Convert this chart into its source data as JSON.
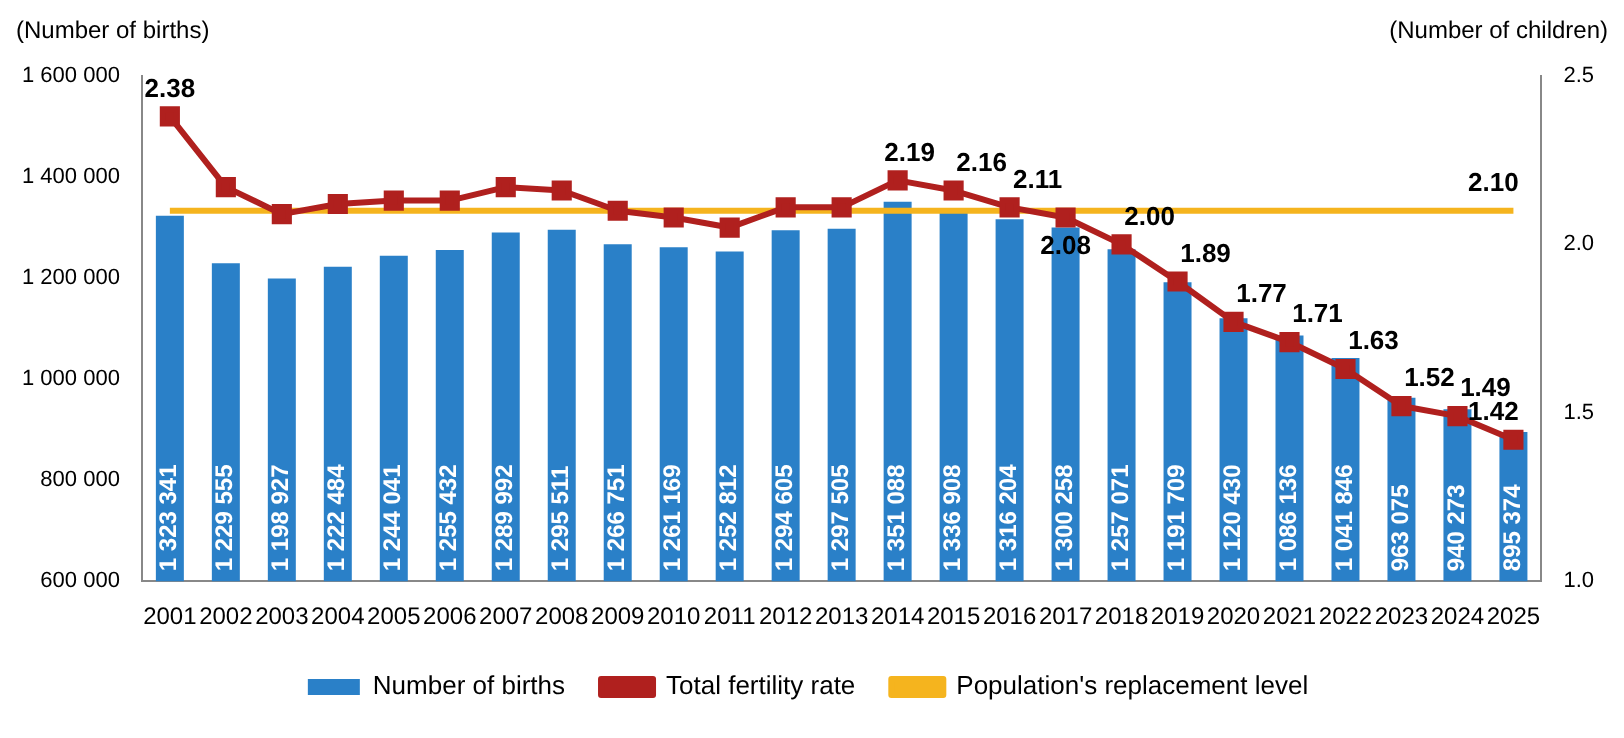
{
  "chart_data": {
    "type": "bar",
    "ylabel": "(Number of births)",
    "y2label": "(Number of children)",
    "categories": [
      "2001",
      "2002",
      "2003",
      "2004",
      "2005",
      "2006",
      "2007",
      "2008",
      "2009",
      "2010",
      "2011",
      "2012",
      "2013",
      "2014",
      "2015",
      "2016",
      "2017",
      "2018",
      "2019",
      "2020",
      "2021",
      "2022",
      "2023",
      "2024",
      "2025"
    ],
    "series": [
      {
        "name": "Number of births",
        "color": "#2a80c8",
        "value_labels": [
          "1 323 341",
          "1 229 555",
          "1 198 927",
          "1 222 484",
          "1 244 041",
          "1 255 432",
          "1 289 992",
          "1 295 511",
          "1 266 751",
          "1 261 169",
          "1 252 812",
          "1 294 605",
          "1 297 505",
          "1 351 088",
          "1 336 908",
          "1 316 204",
          "1 300 258",
          "1 257 071",
          "1 191 709",
          "1 120 430",
          "1 086 136",
          "1 041 846",
          "963 075",
          "940 273",
          "895 374"
        ],
        "values": [
          1323341,
          1229555,
          1198927,
          1222484,
          1244041,
          1255432,
          1289992,
          1295511,
          1266751,
          1261169,
          1252812,
          1294605,
          1297505,
          1351088,
          1336908,
          1316204,
          1300258,
          1257071,
          1191709,
          1120430,
          1086136,
          1041846,
          963075,
          940273,
          895374
        ]
      },
      {
        "name": "Total fertility rate",
        "type": "line",
        "axis": "y2",
        "color": "#b0201e",
        "marker": "square",
        "values": [
          2.38,
          2.17,
          2.09,
          2.12,
          2.13,
          2.13,
          2.17,
          2.16,
          2.1,
          2.08,
          2.05,
          2.11,
          2.11,
          2.19,
          2.16,
          2.11,
          2.08,
          2.0,
          1.89,
          1.77,
          1.71,
          1.63,
          1.52,
          1.49,
          1.42
        ],
        "value_labels": [
          "2.38",
          null,
          null,
          null,
          null,
          null,
          null,
          null,
          null,
          null,
          null,
          null,
          null,
          "2.19",
          "2.16",
          "2.11",
          "2.08",
          "2.00",
          "1.89",
          "1.77",
          "1.71",
          "1.63",
          "1.52",
          "1.49",
          "1.42"
        ]
      },
      {
        "name": "Population's replacement level",
        "type": "line",
        "axis": "y2",
        "color": "#f5b41e",
        "marker": "none",
        "values": [
          2.1,
          2.1,
          2.1,
          2.1,
          2.1,
          2.1,
          2.1,
          2.1,
          2.1,
          2.1,
          2.1,
          2.1,
          2.1,
          2.1,
          2.1,
          2.1,
          2.1,
          2.1,
          2.1,
          2.1,
          2.1,
          2.1,
          2.1,
          2.1,
          2.1
        ],
        "value_labels": [
          null,
          null,
          null,
          null,
          null,
          null,
          null,
          null,
          null,
          null,
          null,
          null,
          null,
          null,
          null,
          null,
          null,
          null,
          null,
          null,
          null,
          null,
          null,
          null,
          "2.10"
        ]
      }
    ],
    "ylim": [
      600000,
      1600000
    ],
    "yticks": [
      {
        "value": 600000,
        "label": "600 000"
      },
      {
        "value": 800000,
        "label": "800 000"
      },
      {
        "value": 1000000,
        "label": "1 000 000"
      },
      {
        "value": 1200000,
        "label": "1 200 000"
      },
      {
        "value": 1400000,
        "label": "1 400 000"
      },
      {
        "value": 1600000,
        "label": "1 600 000"
      }
    ],
    "y2lim": [
      1.0,
      2.5
    ],
    "y2ticks": [
      {
        "value": 1.0,
        "label": "1.0"
      },
      {
        "value": 1.5,
        "label": "1.5"
      },
      {
        "value": 2.0,
        "label": "2.0"
      },
      {
        "value": 2.5,
        "label": "2.5"
      }
    ],
    "grid": false,
    "legend": "bottom"
  }
}
